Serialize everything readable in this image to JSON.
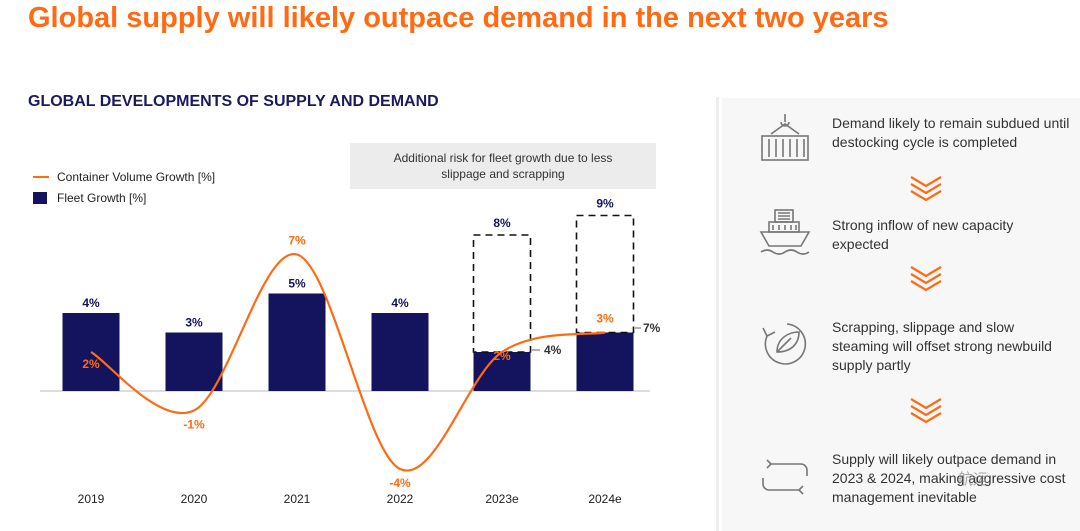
{
  "title": "Global supply will likely outpace demand in the next two years",
  "subtitle": "GLOBAL DEVELOPMENTS OF SUPPLY AND DEMAND",
  "risk_note": "Additional risk for fleet growth due to less slippage and scrapping",
  "colors": {
    "orange": "#ff6a13",
    "navy": "#13135e",
    "panel": "#f7f7f7"
  },
  "chart_data": {
    "type": "bar",
    "categories": [
      "2019",
      "2020",
      "2021",
      "2022",
      "2023e",
      "2024e"
    ],
    "series": [
      {
        "name": "Fleet Growth [%]",
        "kind": "bar",
        "values": [
          4,
          3,
          5,
          4,
          2,
          3
        ],
        "labels": [
          "4%",
          "3%",
          "5%",
          "4%",
          "",
          ""
        ]
      },
      {
        "name": "Fleet Growth [%] (additional risk, dashed)",
        "kind": "bar-dashed-top",
        "values": [
          null,
          null,
          null,
          null,
          8,
          9
        ],
        "labels": [
          "",
          "",
          "",
          "",
          "8%",
          "9%"
        ]
      },
      {
        "name": "Container Volume Growth [%]",
        "kind": "line",
        "values": [
          2,
          -1,
          7,
          -4,
          2,
          3
        ],
        "labels": [
          "2%",
          "-1%",
          "7%",
          "-4%",
          "2%",
          "3%"
        ]
      }
    ],
    "annotations": [
      "4%",
      "7%"
    ],
    "ylim": [
      -5,
      9
    ]
  },
  "right_panel": {
    "items": [
      {
        "icon": "container-crane-icon",
        "text": "Demand likely to remain subdued until destocking cycle is completed"
      },
      {
        "icon": "ship-icon",
        "text": "Strong inflow of new capacity expected"
      },
      {
        "icon": "recycle-leaf-icon",
        "text": "Scrapping, slippage and slow steaming will offset strong newbuild supply partly"
      },
      {
        "icon": "cycle-arrows-icon",
        "text": "Supply will likely outpace demand in 2023 & 2024, making aggressive cost management inevitable"
      }
    ],
    "watermark": "航运"
  }
}
